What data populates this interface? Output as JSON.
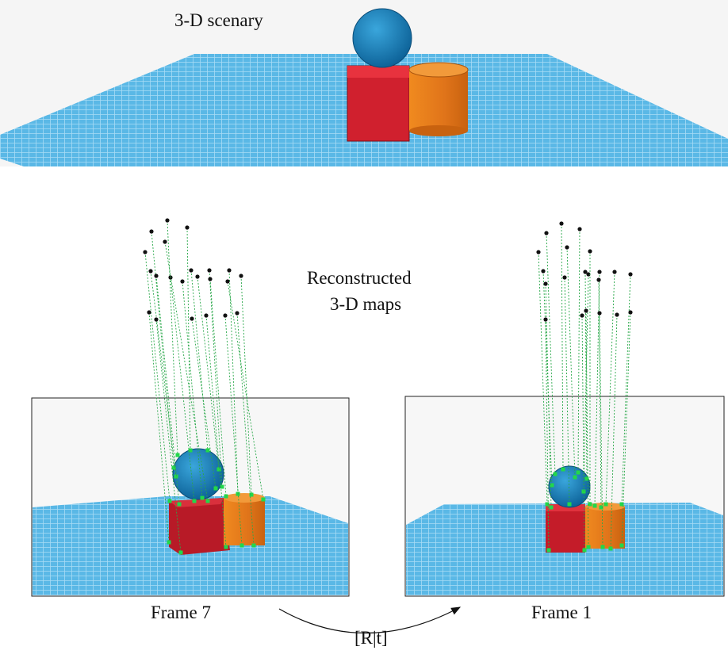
{
  "scene": {
    "title": "3-D scenary"
  },
  "maps": {
    "label_lines": [
      "Reconstructed",
      "3-D maps"
    ]
  },
  "frames": [
    {
      "label": "Frame 7"
    },
    {
      "label": "Frame 1"
    }
  ],
  "transform": {
    "label": "[R|t]"
  }
}
